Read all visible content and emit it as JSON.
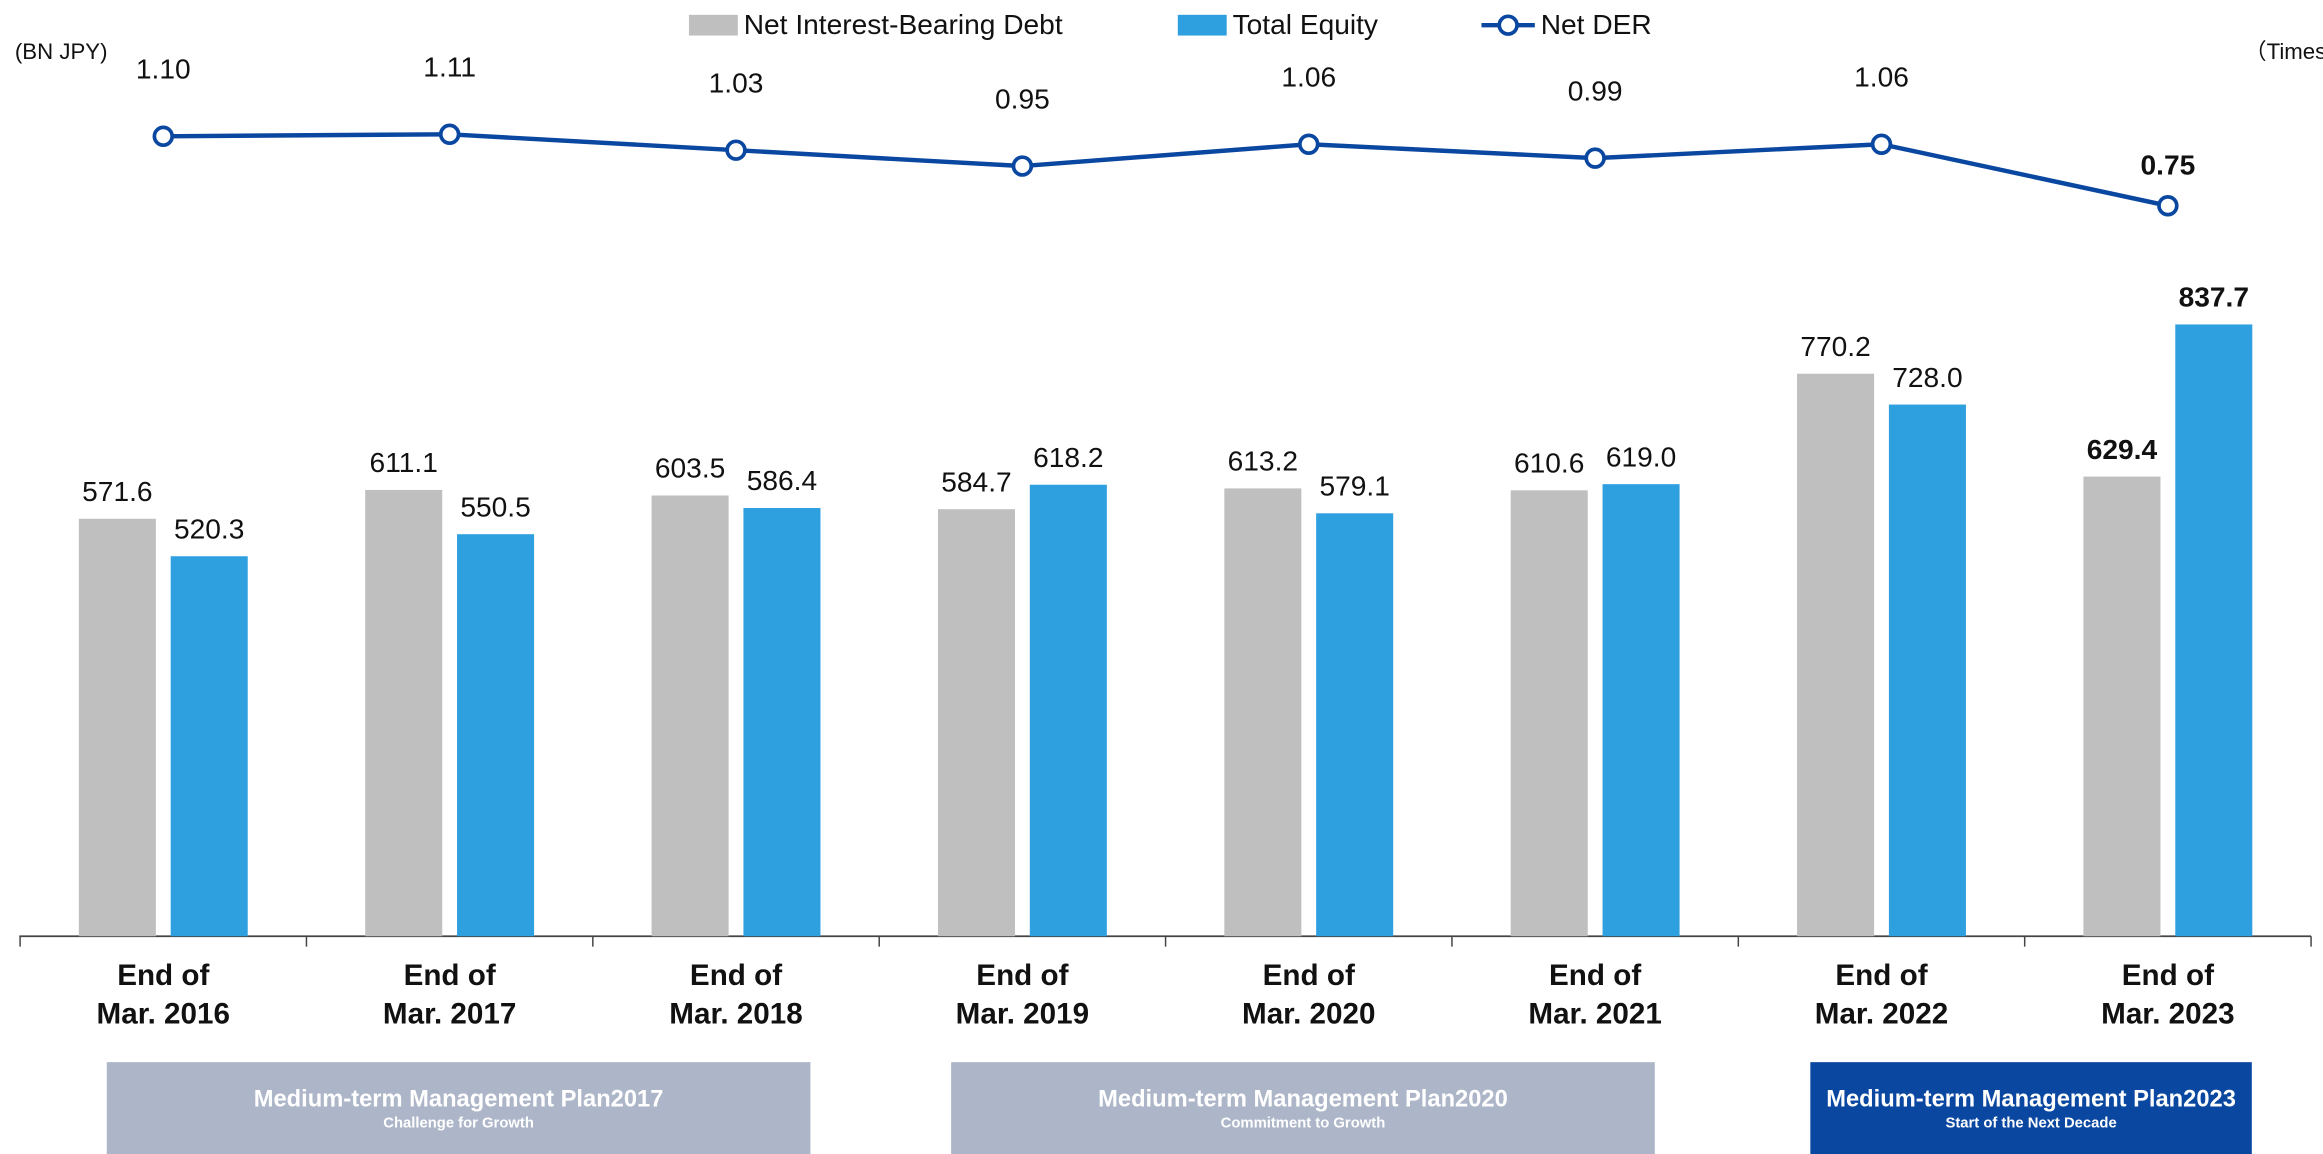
{
  "chart_data": {
    "type": "bar_line",
    "unit_left": "(BN JPY)",
    "unit_right": "（Times)",
    "categories": [
      "End of Mar. 2016",
      "End of Mar. 2017",
      "End of Mar. 2018",
      "End of Mar. 2019",
      "End of Mar. 2020",
      "End of Mar. 2021",
      "End of Mar. 2022",
      "End of Mar. 2023"
    ],
    "series": [
      {
        "name": "Net Interest-Bearing Debt",
        "type": "bar",
        "color": "#bfbfbf",
        "values": [
          571.6,
          611.1,
          603.5,
          584.7,
          613.2,
          610.6,
          770.2,
          629.4
        ]
      },
      {
        "name": "Total Equity",
        "type": "bar",
        "color": "#2e9fdf",
        "values": [
          520.3,
          550.5,
          586.4,
          618.2,
          579.1,
          619.0,
          728.0,
          837.7
        ],
        "value_labels": [
          "520.3",
          "550.5",
          "586.4",
          "618.2",
          "579.1",
          "619.0",
          "728.0",
          "837.7"
        ]
      },
      {
        "name": "Net DER",
        "type": "line",
        "axis": "y2",
        "color": "#0a47a0",
        "values": [
          1.1,
          1.11,
          1.03,
          0.95,
          1.06,
          0.99,
          1.06,
          0.75
        ],
        "value_labels": [
          "1.10",
          "1.11",
          "1.03",
          "0.95",
          "1.06",
          "0.99",
          "1.06",
          "0.75"
        ]
      }
    ],
    "ylim": [
      0,
      900
    ],
    "y2lim": [
      0,
      1.5
    ],
    "plans": [
      {
        "title": "Medium-term  Management Plan2017",
        "subtitle": "Challenge for Growth",
        "color": "#adb6c8"
      },
      {
        "title": "Medium-term  Management Plan2020",
        "subtitle": "Commitment to Growth",
        "color": "#adb6c8"
      },
      {
        "title": "Medium-term  Management Plan2023",
        "subtitle": "Start of the Next Decade",
        "color": "#0a47a0"
      }
    ]
  }
}
